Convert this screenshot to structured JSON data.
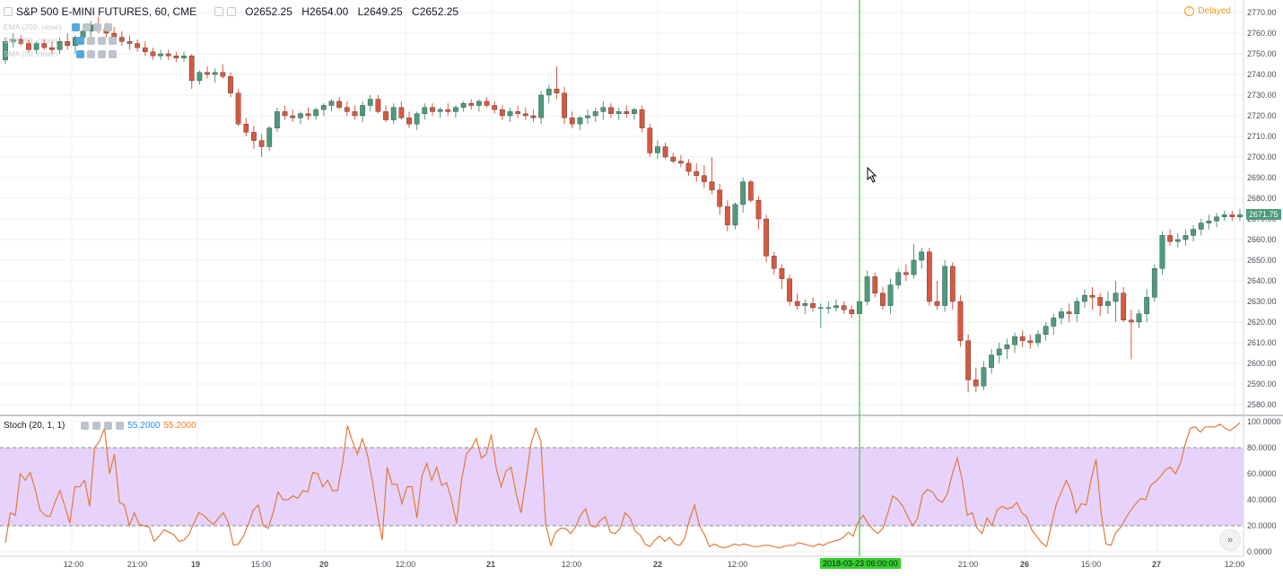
{
  "header": {
    "symbol": "S&P 500 E-MINI FUTURES, 60, CME",
    "open": "O2652.25",
    "high": "H2654.00",
    "low": "L2649.25",
    "close": "C2652.25",
    "status": "Delayed"
  },
  "indicators": [
    {
      "label": "EMA (200, close)"
    },
    {
      "label": "SMA (50, close)"
    },
    {
      "label": "SMA (20, close)"
    }
  ],
  "stoch": {
    "label": "Stoch (20, 1, 1)",
    "k_value": "55.2000",
    "d_value": "55.2000"
  },
  "last_price": "2671.75",
  "crosshair_time": "2018-03-23 06:00:00",
  "scroll_icon": "double-chevron-right-icon",
  "colors": {
    "up": "#4b9c7d",
    "down": "#d9573e",
    "stoch_line": "#e07b39",
    "band_fill": "#e7d2fb",
    "crosshair": "#33cc33",
    "k_color": "#2196f3",
    "d_color": "#ff7a1a"
  },
  "chart_data": [
    {
      "type": "candlestick",
      "title": "S&P 500 E-MINI FUTURES, 60, CME",
      "ylim": [
        2580,
        2770
      ],
      "y_ticks": [
        "2770.00",
        "2760.00",
        "2750.00",
        "2740.00",
        "2730.00",
        "2720.00",
        "2710.00",
        "2700.00",
        "2690.00",
        "2680.00",
        "2670.00",
        "2660.00",
        "2650.00",
        "2640.00",
        "2630.00",
        "2620.00",
        "2610.00",
        "2600.00",
        "2590.00",
        "2580.00"
      ],
      "x_ticks": [
        "12:00",
        "21:00",
        "19",
        "15:00",
        "20",
        "12:00",
        "21",
        "12:00",
        "22",
        "12:00",
        "26",
        "21:00",
        "26",
        "15:00",
        "27",
        "12:00"
      ],
      "grid": true,
      "candles": [
        [
          2747,
          2758,
          2745,
          2756
        ],
        [
          2756,
          2760,
          2753,
          2757
        ],
        [
          2757,
          2759,
          2754,
          2755
        ],
        [
          2755,
          2757,
          2751,
          2752
        ],
        [
          2752,
          2756,
          2750,
          2755
        ],
        [
          2755,
          2757,
          2752,
          2753
        ],
        [
          2753,
          2756,
          2750,
          2752
        ],
        [
          2752,
          2758,
          2750,
          2756
        ],
        [
          2756,
          2760,
          2752,
          2754
        ],
        [
          2754,
          2759,
          2750,
          2758
        ],
        [
          2758,
          2763,
          2755,
          2761
        ],
        [
          2761,
          2766,
          2758,
          2764
        ],
        [
          2764,
          2768,
          2760,
          2762
        ],
        [
          2762,
          2765,
          2758,
          2760
        ],
        [
          2760,
          2763,
          2756,
          2758
        ],
        [
          2758,
          2761,
          2754,
          2756
        ],
        [
          2756,
          2759,
          2752,
          2755
        ],
        [
          2755,
          2757,
          2751,
          2753
        ],
        [
          2753,
          2756,
          2749,
          2751
        ],
        [
          2751,
          2753,
          2747,
          2749
        ],
        [
          2749,
          2752,
          2747,
          2750
        ],
        [
          2750,
          2752,
          2747,
          2749
        ],
        [
          2749,
          2751,
          2746,
          2748
        ],
        [
          2748,
          2751,
          2746,
          2749
        ],
        [
          2749,
          2750,
          2733,
          2737
        ],
        [
          2737,
          2742,
          2735,
          2741
        ],
        [
          2741,
          2744,
          2738,
          2740
        ],
        [
          2740,
          2743,
          2736,
          2741
        ],
        [
          2741,
          2745,
          2738,
          2739
        ],
        [
          2739,
          2741,
          2729,
          2731
        ],
        [
          2731,
          2733,
          2715,
          2716
        ],
        [
          2716,
          2719,
          2710,
          2712
        ],
        [
          2712,
          2715,
          2704,
          2708
        ],
        [
          2708,
          2711,
          2700,
          2705
        ],
        [
          2705,
          2715,
          2703,
          2714
        ],
        [
          2714,
          2724,
          2712,
          2722
        ],
        [
          2722,
          2725,
          2718,
          2720
        ],
        [
          2720,
          2723,
          2717,
          2719
        ],
        [
          2719,
          2722,
          2716,
          2721
        ],
        [
          2721,
          2724,
          2718,
          2720
        ],
        [
          2720,
          2724,
          2718,
          2723
        ],
        [
          2723,
          2726,
          2720,
          2725
        ],
        [
          2725,
          2728,
          2722,
          2727
        ],
        [
          2727,
          2729,
          2723,
          2724
        ],
        [
          2724,
          2727,
          2720,
          2722
        ],
        [
          2722,
          2725,
          2718,
          2720
        ],
        [
          2720,
          2727,
          2717,
          2725
        ],
        [
          2725,
          2730,
          2722,
          2728
        ],
        [
          2728,
          2730,
          2721,
          2722
        ],
        [
          2722,
          2725,
          2717,
          2718
        ],
        [
          2718,
          2726,
          2716,
          2724
        ],
        [
          2724,
          2727,
          2718,
          2719
        ],
        [
          2719,
          2722,
          2714,
          2716
        ],
        [
          2716,
          2722,
          2713,
          2721
        ],
        [
          2721,
          2726,
          2718,
          2724
        ],
        [
          2724,
          2726,
          2720,
          2722
        ],
        [
          2722,
          2724,
          2719,
          2723
        ],
        [
          2723,
          2726,
          2720,
          2722
        ],
        [
          2722,
          2725,
          2719,
          2724
        ],
        [
          2724,
          2727,
          2722,
          2726
        ],
        [
          2726,
          2728,
          2723,
          2725
        ],
        [
          2725,
          2728,
          2722,
          2727
        ],
        [
          2727,
          2729,
          2724,
          2725
        ],
        [
          2725,
          2727,
          2721,
          2723
        ],
        [
          2723,
          2725,
          2718,
          2720
        ],
        [
          2720,
          2724,
          2717,
          2722
        ],
        [
          2722,
          2725,
          2719,
          2721
        ],
        [
          2721,
          2724,
          2718,
          2720
        ],
        [
          2720,
          2723,
          2717,
          2719
        ],
        [
          2719,
          2732,
          2716,
          2730
        ],
        [
          2730,
          2735,
          2726,
          2733
        ],
        [
          2733,
          2744,
          2728,
          2731
        ],
        [
          2731,
          2734,
          2716,
          2719
        ],
        [
          2719,
          2722,
          2714,
          2716
        ],
        [
          2716,
          2720,
          2713,
          2719
        ],
        [
          2719,
          2723,
          2716,
          2720
        ],
        [
          2720,
          2724,
          2717,
          2722
        ],
        [
          2722,
          2727,
          2718,
          2724
        ],
        [
          2724,
          2726,
          2719,
          2721
        ],
        [
          2721,
          2724,
          2718,
          2722
        ],
        [
          2722,
          2725,
          2719,
          2721
        ],
        [
          2721,
          2724,
          2718,
          2723
        ],
        [
          2723,
          2725,
          2712,
          2714
        ],
        [
          2714,
          2716,
          2700,
          2702
        ],
        [
          2702,
          2708,
          2699,
          2705
        ],
        [
          2705,
          2707,
          2699,
          2700
        ],
        [
          2700,
          2702,
          2697,
          2698
        ],
        [
          2698,
          2701,
          2695,
          2697
        ],
        [
          2697,
          2699,
          2691,
          2693
        ],
        [
          2693,
          2697,
          2688,
          2691
        ],
        [
          2691,
          2696,
          2685,
          2688
        ],
        [
          2688,
          2700,
          2682,
          2684
        ],
        [
          2684,
          2687,
          2672,
          2676
        ],
        [
          2676,
          2679,
          2664,
          2667
        ],
        [
          2667,
          2678,
          2665,
          2677
        ],
        [
          2677,
          2690,
          2673,
          2688
        ],
        [
          2688,
          2689,
          2678,
          2679
        ],
        [
          2679,
          2681,
          2665,
          2670
        ],
        [
          2670,
          2672,
          2649,
          2652
        ],
        [
          2652,
          2654,
          2643,
          2646
        ],
        [
          2646,
          2648,
          2636,
          2641
        ],
        [
          2641,
          2643,
          2628,
          2630
        ],
        [
          2630,
          2634,
          2626,
          2628
        ],
        [
          2628,
          2631,
          2624,
          2629
        ],
        [
          2629,
          2632,
          2625,
          2627
        ],
        [
          2627,
          2629,
          2617,
          2627
        ],
        [
          2627,
          2630,
          2624,
          2627
        ],
        [
          2627,
          2631,
          2625,
          2628
        ],
        [
          2628,
          2630,
          2624,
          2626
        ],
        [
          2626,
          2628,
          2622,
          2624
        ],
        [
          2624,
          2632,
          2622,
          2630
        ],
        [
          2630,
          2645,
          2628,
          2642
        ],
        [
          2642,
          2644,
          2632,
          2634
        ],
        [
          2634,
          2637,
          2626,
          2628
        ],
        [
          2628,
          2641,
          2624,
          2638
        ],
        [
          2638,
          2646,
          2636,
          2644
        ],
        [
          2644,
          2648,
          2640,
          2643
        ],
        [
          2643,
          2658,
          2641,
          2650
        ],
        [
          2650,
          2656,
          2646,
          2654
        ],
        [
          2654,
          2656,
          2628,
          2630
        ],
        [
          2630,
          2640,
          2626,
          2628
        ],
        [
          2628,
          2650,
          2625,
          2647
        ],
        [
          2647,
          2649,
          2626,
          2630
        ],
        [
          2630,
          2633,
          2608,
          2611
        ],
        [
          2611,
          2614,
          2586,
          2592
        ],
        [
          2592,
          2598,
          2586,
          2589
        ],
        [
          2589,
          2601,
          2587,
          2598
        ],
        [
          2598,
          2607,
          2595,
          2604
        ],
        [
          2604,
          2610,
          2600,
          2607
        ],
        [
          2607,
          2612,
          2602,
          2609
        ],
        [
          2609,
          2615,
          2605,
          2613
        ],
        [
          2613,
          2616,
          2608,
          2611
        ],
        [
          2611,
          2614,
          2607,
          2610
        ],
        [
          2610,
          2616,
          2608,
          2614
        ],
        [
          2614,
          2620,
          2611,
          2618
        ],
        [
          2618,
          2624,
          2614,
          2622
        ],
        [
          2622,
          2627,
          2619,
          2625
        ],
        [
          2625,
          2629,
          2620,
          2624
        ],
        [
          2624,
          2632,
          2620,
          2630
        ],
        [
          2630,
          2636,
          2627,
          2633
        ],
        [
          2633,
          2637,
          2626,
          2632
        ],
        [
          2632,
          2634,
          2623,
          2628
        ],
        [
          2628,
          2635,
          2624,
          2630
        ],
        [
          2630,
          2640,
          2620,
          2634
        ],
        [
          2634,
          2637,
          2620,
          2621
        ],
        [
          2621,
          2626,
          2602,
          2620
        ],
        [
          2620,
          2626,
          2617,
          2624
        ],
        [
          2624,
          2636,
          2620,
          2632
        ],
        [
          2632,
          2648,
          2630,
          2646
        ],
        [
          2646,
          2664,
          2643,
          2662
        ],
        [
          2662,
          2665,
          2657,
          2659
        ],
        [
          2659,
          2663,
          2656,
          2660
        ],
        [
          2660,
          2665,
          2657,
          2662
        ],
        [
          2662,
          2667,
          2659,
          2665
        ],
        [
          2665,
          2670,
          2662,
          2668
        ],
        [
          2668,
          2672,
          2665,
          2669
        ],
        [
          2669,
          2673,
          2666,
          2671
        ],
        [
          2671,
          2674,
          2669,
          2672
        ],
        [
          2672,
          2674,
          2669,
          2671
        ],
        [
          2671,
          2675,
          2669,
          2672
        ]
      ]
    },
    {
      "type": "line",
      "title": "Stoch (20, 1, 1)",
      "ylim": [
        0,
        100
      ],
      "y_ticks": [
        "100.0000",
        "80.0000",
        "60.0000",
        "40.0000",
        "20.0000",
        "0.0000"
      ],
      "band": [
        20,
        80
      ],
      "grid": true,
      "series": [
        {
          "values": [
            7,
            30,
            28,
            60,
            55,
            61,
            48,
            32,
            28,
            27,
            38,
            47,
            35,
            22,
            50,
            50,
            55,
            35,
            80,
            85,
            95,
            60,
            75,
            38,
            36,
            20,
            30,
            21,
            20,
            19,
            8,
            12,
            17,
            15,
            13,
            8,
            9,
            13,
            22,
            30,
            28,
            24,
            21,
            26,
            30,
            22,
            5,
            6,
            12,
            21,
            32,
            36,
            20,
            18,
            30,
            46,
            40,
            40,
            43,
            41,
            47,
            46,
            61,
            60,
            50,
            55,
            47,
            47,
            68,
            97,
            85,
            75,
            87,
            75,
            55,
            30,
            9,
            65,
            52,
            52,
            37,
            50,
            50,
            26,
            58,
            68,
            55,
            65,
            51,
            53,
            40,
            22,
            55,
            75,
            80,
            87,
            72,
            75,
            90,
            64,
            50,
            62,
            65,
            45,
            30,
            55,
            83,
            95,
            85,
            21,
            5,
            15,
            18,
            18,
            14,
            19,
            28,
            33,
            20,
            19,
            24,
            27,
            15,
            14,
            18,
            30,
            26,
            16,
            13,
            6,
            4,
            9,
            12,
            8,
            11,
            6,
            5,
            10,
            25,
            36,
            20,
            13,
            4,
            6,
            4,
            3,
            4,
            6,
            5,
            6,
            5,
            4,
            4,
            5,
            5,
            4,
            3,
            4,
            5,
            5,
            7,
            6,
            5,
            4,
            6,
            5,
            7,
            8,
            9,
            11,
            15,
            12,
            23,
            28,
            22,
            17,
            14,
            18,
            30,
            43,
            40,
            35,
            27,
            20,
            26,
            44,
            48,
            46,
            40,
            38,
            45,
            60,
            72,
            55,
            28,
            30,
            18,
            14,
            26,
            20,
            32,
            35,
            33,
            34,
            38,
            30,
            27,
            17,
            12,
            7,
            4,
            21,
            37,
            46,
            55,
            46,
            30,
            37,
            36,
            56,
            71,
            30,
            6,
            5,
            15,
            19,
            26,
            32,
            37,
            41,
            40,
            51,
            54,
            58,
            63,
            65,
            60,
            68,
            83,
            95,
            96,
            92,
            96,
            96,
            96,
            98,
            95,
            93,
            96,
            99
          ]
        }
      ]
    }
  ]
}
